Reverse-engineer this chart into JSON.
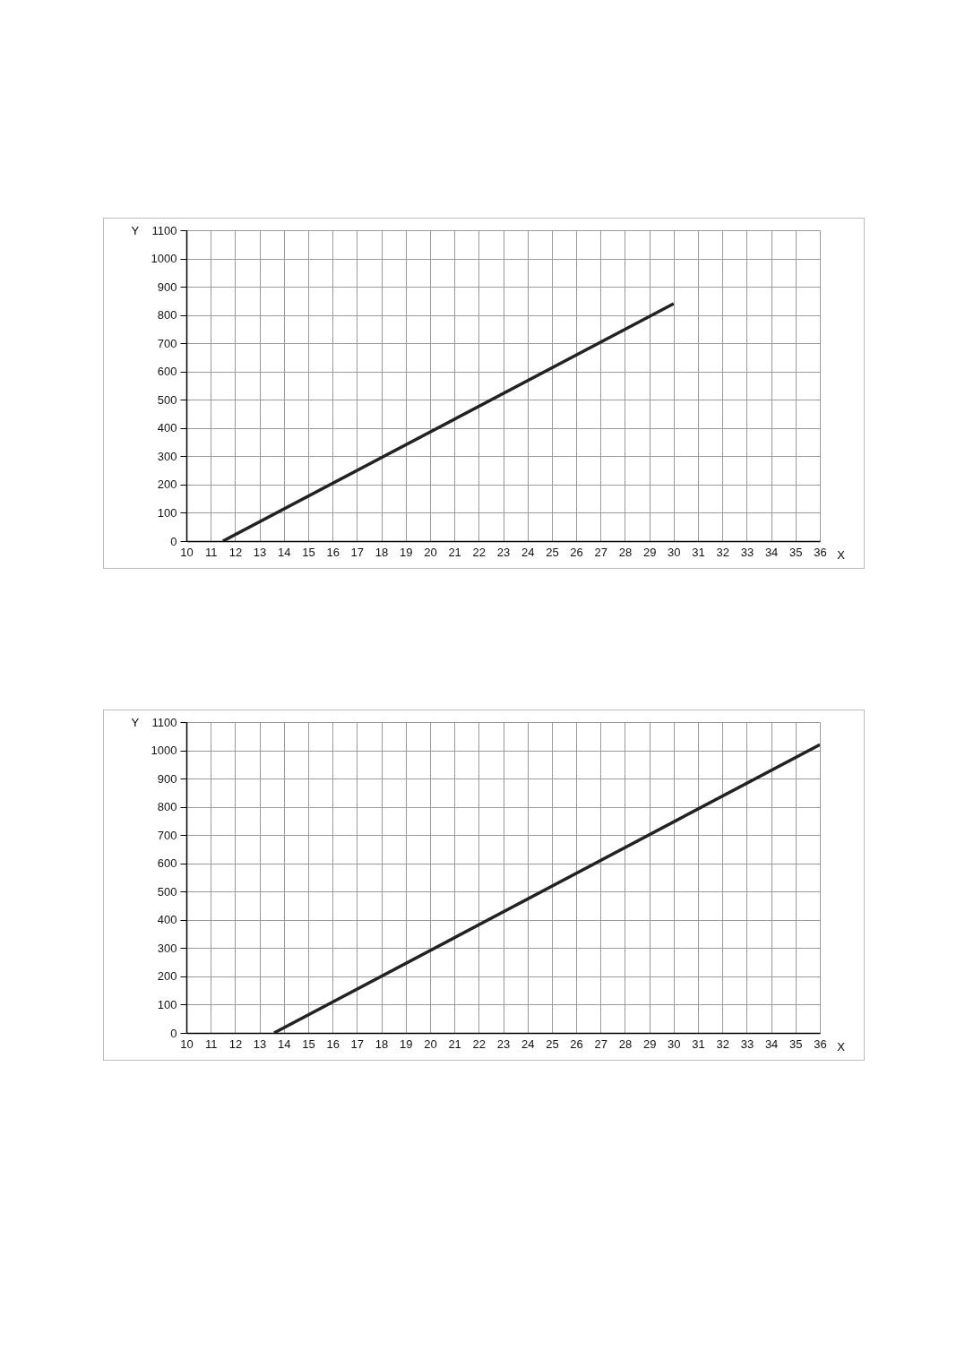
{
  "chart_data": [
    {
      "type": "line",
      "xlabel": "X",
      "ylabel": "Y",
      "xlim": [
        10,
        36
      ],
      "ylim": [
        0,
        1100
      ],
      "xticks": [
        10,
        11,
        12,
        13,
        14,
        15,
        16,
        17,
        18,
        19,
        20,
        21,
        22,
        23,
        24,
        25,
        26,
        27,
        28,
        29,
        30,
        31,
        32,
        33,
        34,
        35,
        36
      ],
      "yticks": [
        0,
        100,
        200,
        300,
        400,
        500,
        600,
        700,
        800,
        900,
        1000,
        1100
      ],
      "grid": true,
      "series": [
        {
          "color": "#222222",
          "x": [
            11.5,
            30
          ],
          "values": [
            0,
            840
          ]
        }
      ]
    },
    {
      "type": "line",
      "xlabel": "X",
      "ylabel": "Y",
      "xlim": [
        10,
        36
      ],
      "ylim": [
        0,
        1100
      ],
      "xticks": [
        10,
        11,
        12,
        13,
        14,
        15,
        16,
        17,
        18,
        19,
        20,
        21,
        22,
        23,
        24,
        25,
        26,
        27,
        28,
        29,
        30,
        31,
        32,
        33,
        34,
        35,
        36
      ],
      "yticks": [
        0,
        100,
        200,
        300,
        400,
        500,
        600,
        700,
        800,
        900,
        1000,
        1100
      ],
      "grid": true,
      "series": [
        {
          "color": "#222222",
          "x": [
            13.6,
            36
          ],
          "values": [
            0,
            1020
          ]
        }
      ]
    }
  ]
}
